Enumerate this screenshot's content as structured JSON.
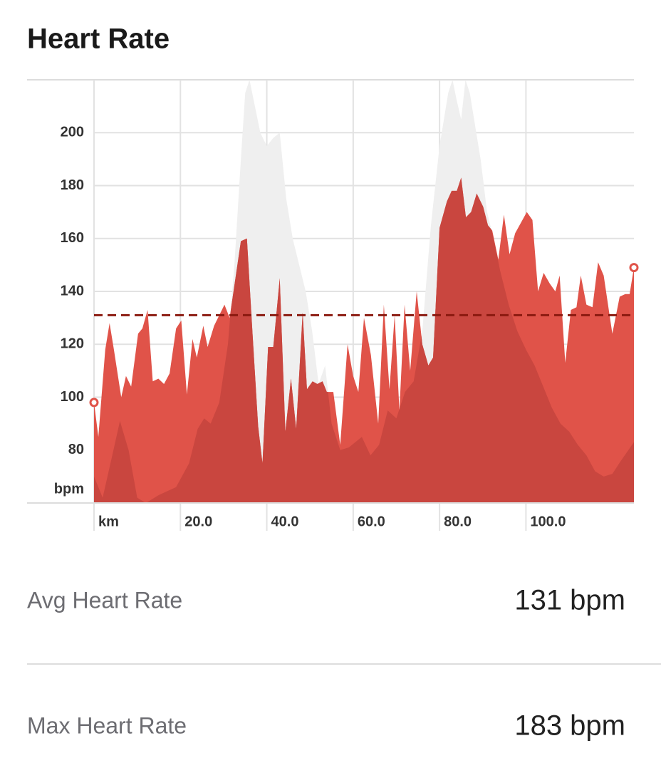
{
  "title": "Heart Rate",
  "chart_data": {
    "type": "area",
    "ylabel": "bpm",
    "xlim": [
      0,
      125
    ],
    "ylim": [
      60,
      220
    ],
    "xticks": [
      {
        "value": 0,
        "label": "km"
      },
      {
        "value": 20,
        "label": "20.0"
      },
      {
        "value": 40,
        "label": "40.0"
      },
      {
        "value": 60,
        "label": "60.0"
      },
      {
        "value": 80,
        "label": "80.0"
      },
      {
        "value": 100,
        "label": "100.0"
      }
    ],
    "yticks": [
      80,
      100,
      120,
      140,
      160,
      180,
      200
    ],
    "grid": true,
    "avg": 131,
    "avg_color": "#8b1a10",
    "series": [
      {
        "color": "#efefef",
        "overlap_color": "#c9463f",
        "x": [
          0,
          2,
          4.5,
          6,
          8,
          10,
          12,
          15,
          19,
          22,
          24,
          25.5,
          27,
          29,
          31,
          32.5,
          34,
          35,
          36,
          37,
          38.5,
          40,
          41.5,
          43,
          44.5,
          46,
          47.5,
          49,
          50.5,
          52,
          53.5,
          55,
          57,
          59,
          62,
          64,
          66,
          68,
          70,
          72,
          74,
          76,
          78,
          80,
          82,
          83,
          84,
          85,
          86,
          87,
          88,
          89.5,
          91,
          92.5,
          94,
          96,
          98,
          100,
          102,
          104,
          106,
          108,
          110,
          112,
          114,
          116,
          118,
          120,
          122,
          125
        ],
        "values": [
          70,
          62,
          80,
          91,
          80,
          62,
          60,
          63,
          66,
          75,
          88,
          92,
          90,
          98,
          120,
          150,
          190,
          215,
          220,
          212,
          200,
          195,
          198,
          200,
          175,
          160,
          150,
          140,
          125,
          105,
          112,
          90,
          80,
          81,
          85,
          78,
          82,
          95,
          92,
          102,
          106,
          125,
          165,
          195,
          215,
          220,
          212,
          205,
          220,
          215,
          205,
          190,
          170,
          160,
          148,
          135,
          125,
          118,
          112,
          104,
          96,
          90,
          87,
          82,
          78,
          72,
          70,
          71,
          76,
          83
        ]
      },
      {
        "color": "#e05349",
        "x": [
          0,
          1,
          2.6,
          3.6,
          4.6,
          6.3,
          7.4,
          8.6,
          10.2,
          11.2,
          12.4,
          13.6,
          14.9,
          16.2,
          17.5,
          19,
          20.2,
          21.5,
          22.8,
          23.8,
          25.3,
          26.3,
          27.8,
          30.2,
          31.4,
          34,
          35.4,
          36.7,
          38,
          39,
          40.3,
          41.5,
          43,
          44.3,
          45.6,
          46.8,
          48.3,
          49.3,
          50.6,
          51.7,
          52.9,
          53.9,
          55.4,
          57,
          58.7,
          60,
          61.2,
          62.5,
          64.1,
          65.8,
          67.1,
          68.4,
          69.6,
          70.7,
          71.9,
          73.2,
          74.7,
          76,
          77.4,
          78.5,
          80,
          81.7,
          82.8,
          84,
          85,
          86.1,
          87.3,
          88.6,
          90.1,
          91.2,
          92.2,
          93.6,
          94.9,
          96.2,
          97.5,
          100.2,
          101.5,
          102.8,
          104.1,
          105.5,
          106.8,
          107.8,
          109.1,
          110.4,
          111.7,
          112.7,
          114,
          115.4,
          116.7,
          118,
          120,
          121.7,
          123,
          124,
          125
        ],
        "values": [
          98,
          85,
          118,
          128,
          118,
          100,
          108,
          104,
          124,
          126,
          133,
          106,
          107,
          105,
          109,
          126,
          129,
          101,
          122,
          115,
          127,
          119,
          127,
          135,
          130,
          159,
          160,
          124,
          89,
          75,
          119,
          119,
          145,
          87,
          107,
          88,
          132,
          103,
          106,
          105,
          106,
          102,
          102,
          82,
          120,
          108,
          102,
          130,
          116,
          90,
          135,
          103,
          131,
          95,
          135,
          110,
          140,
          120,
          112,
          115,
          164,
          174,
          178,
          178,
          183,
          168,
          170,
          177,
          172,
          165,
          163,
          152,
          169,
          154,
          162,
          170,
          167,
          140,
          147,
          143,
          140,
          146,
          113,
          133,
          134,
          146,
          135,
          134,
          151,
          146,
          124,
          138,
          139,
          139,
          149
        ]
      }
    ]
  },
  "stats": [
    {
      "label": "Avg Heart Rate",
      "value": "131 bpm"
    },
    {
      "label": "Max Heart Rate",
      "value": "183 bpm"
    }
  ]
}
